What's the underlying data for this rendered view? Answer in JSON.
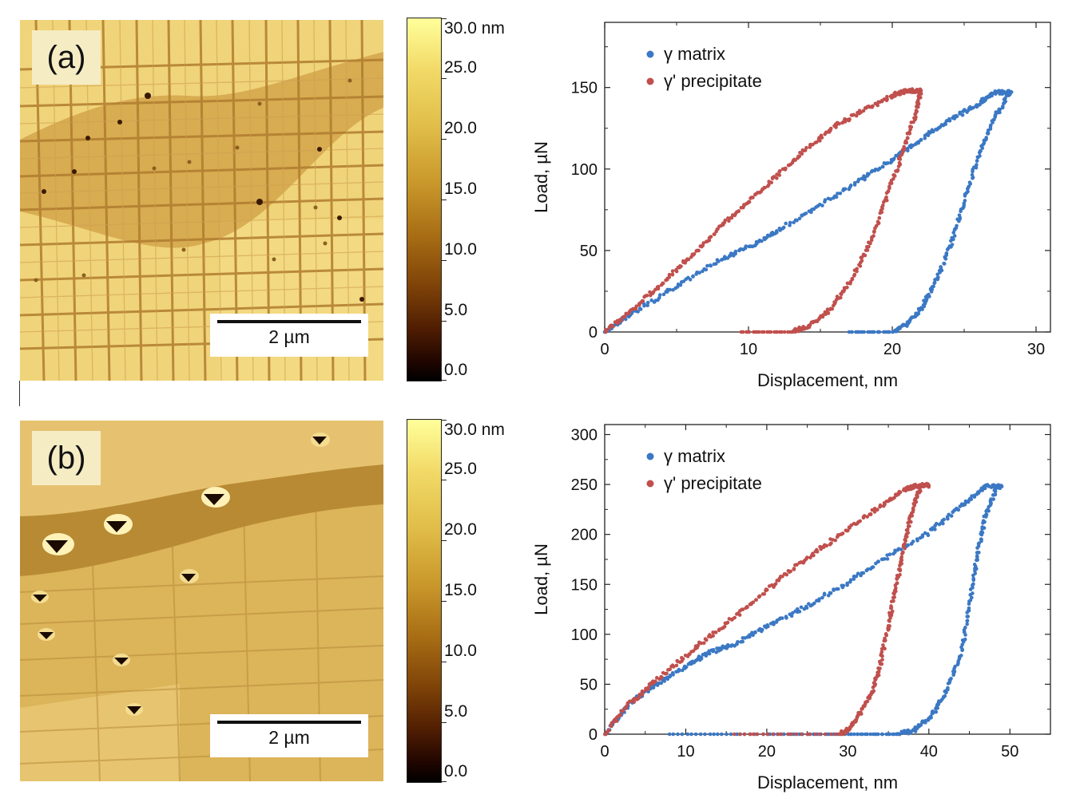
{
  "panels": [
    {
      "label": "(a)",
      "scalebar": "2 µm",
      "colorbar_ticks": [
        "30.0 nm",
        "25.0",
        "20.0",
        "15.0",
        "10.0",
        "5.0",
        "0.0"
      ]
    },
    {
      "label": "(b)",
      "scalebar": "2 µm",
      "colorbar_ticks": [
        "30.0 nm",
        "25.0",
        "20.0",
        "15.0",
        "10.0",
        "5.0",
        "0.0"
      ]
    }
  ],
  "chart_data": [
    {
      "type": "scatter",
      "xlabel": "Displacement, nm",
      "ylabel": "Load, µN",
      "xlim": [
        0,
        31
      ],
      "ylim": [
        0,
        190
      ],
      "xticks": [
        0,
        10,
        20,
        30
      ],
      "yticks": [
        0,
        50,
        100,
        150
      ],
      "legend_position": "top-left",
      "series": [
        {
          "name": "γ matrix",
          "color": "#3b78c4",
          "loading": [
            [
              0,
              0
            ],
            [
              2,
              12
            ],
            [
              5,
              28
            ],
            [
              8,
              44
            ],
            [
              10,
              52
            ],
            [
              12,
              62
            ],
            [
              15,
              78
            ],
            [
              18,
              94
            ],
            [
              20,
              106
            ],
            [
              22,
              118
            ],
            [
              24,
              130
            ],
            [
              26,
              140
            ],
            [
              27,
              147
            ],
            [
              28.2,
              147
            ]
          ],
          "unloading": [
            [
              28.2,
              147
            ],
            [
              27,
              130
            ],
            [
              26,
              108
            ],
            [
              25,
              80
            ],
            [
              24,
              52
            ],
            [
              23,
              30
            ],
            [
              22,
              14
            ],
            [
              21,
              5
            ],
            [
              20,
              0
            ],
            [
              17,
              0
            ]
          ]
        },
        {
          "name": "γ' precipitate",
          "color": "#c0504d",
          "loading": [
            [
              0,
              0
            ],
            [
              2,
              14
            ],
            [
              4,
              30
            ],
            [
              6,
              46
            ],
            [
              8,
              64
            ],
            [
              10,
              80
            ],
            [
              12,
              96
            ],
            [
              14,
              112
            ],
            [
              16,
              126
            ],
            [
              18,
              136
            ],
            [
              20,
              145
            ],
            [
              21,
              148
            ],
            [
              22,
              148
            ]
          ],
          "unloading": [
            [
              22,
              148
            ],
            [
              21.5,
              130
            ],
            [
              20.5,
              105
            ],
            [
              19.5,
              80
            ],
            [
              18.5,
              55
            ],
            [
              17,
              30
            ],
            [
              15.5,
              12
            ],
            [
              14,
              3
            ],
            [
              13,
              0
            ],
            [
              9.5,
              0
            ]
          ]
        }
      ]
    },
    {
      "type": "scatter",
      "xlabel": "Displacement, nm",
      "ylabel": "Load, µN",
      "xlim": [
        0,
        55
      ],
      "ylim": [
        0,
        310
      ],
      "xticks": [
        0,
        10,
        20,
        30,
        40,
        50
      ],
      "yticks": [
        0,
        50,
        100,
        150,
        200,
        250,
        300
      ],
      "legend_position": "top-left",
      "series": [
        {
          "name": "γ matrix",
          "color": "#3b78c4",
          "loading": [
            [
              0,
              0
            ],
            [
              3,
              30
            ],
            [
              6,
              48
            ],
            [
              10,
              68
            ],
            [
              13,
              82
            ],
            [
              16,
              90
            ],
            [
              20,
              108
            ],
            [
              25,
              128
            ],
            [
              30,
              152
            ],
            [
              35,
              178
            ],
            [
              40,
              202
            ],
            [
              44,
              228
            ],
            [
              47,
              248
            ],
            [
              49,
              248
            ]
          ],
          "unloading": [
            [
              48.5,
              248
            ],
            [
              47,
              220
            ],
            [
              46,
              180
            ],
            [
              45,
              130
            ],
            [
              44,
              80
            ],
            [
              42,
              40
            ],
            [
              40,
              15
            ],
            [
              38,
              3
            ],
            [
              36,
              0
            ],
            [
              30,
              0
            ],
            [
              20,
              0
            ],
            [
              8,
              0
            ]
          ]
        },
        {
          "name": "γ' precipitate",
          "color": "#c0504d",
          "loading": [
            [
              0,
              0
            ],
            [
              3,
              30
            ],
            [
              6,
              52
            ],
            [
              10,
              78
            ],
            [
              14,
              105
            ],
            [
              18,
              130
            ],
            [
              22,
              158
            ],
            [
              26,
              182
            ],
            [
              30,
              205
            ],
            [
              34,
              228
            ],
            [
              37,
              245
            ],
            [
              38.5,
              249
            ],
            [
              40,
              249
            ]
          ],
          "unloading": [
            [
              39,
              249
            ],
            [
              38,
              225
            ],
            [
              37,
              190
            ],
            [
              36,
              150
            ],
            [
              35,
              110
            ],
            [
              34,
              70
            ],
            [
              33,
              40
            ],
            [
              31,
              15
            ],
            [
              30,
              4
            ],
            [
              29,
              0
            ],
            [
              16,
              0
            ]
          ]
        }
      ]
    }
  ]
}
